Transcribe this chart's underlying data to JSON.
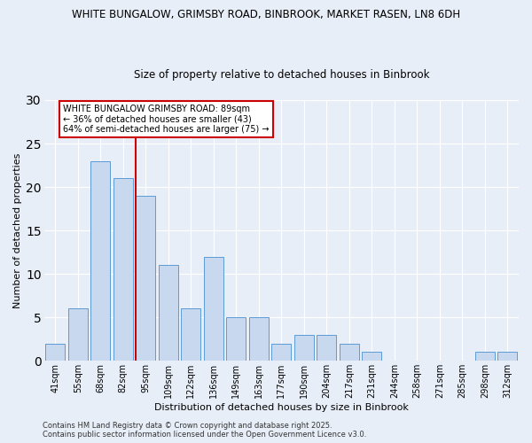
{
  "title1": "WHITE BUNGALOW, GRIMSBY ROAD, BINBROOK, MARKET RASEN, LN8 6DH",
  "title2": "Size of property relative to detached houses in Binbrook",
  "xlabel": "Distribution of detached houses by size in Binbrook",
  "ylabel": "Number of detached properties",
  "bins": [
    "41sqm",
    "55sqm",
    "68sqm",
    "82sqm",
    "95sqm",
    "109sqm",
    "122sqm",
    "136sqm",
    "149sqm",
    "163sqm",
    "177sqm",
    "190sqm",
    "204sqm",
    "217sqm",
    "231sqm",
    "244sqm",
    "258sqm",
    "271sqm",
    "285sqm",
    "298sqm",
    "312sqm"
  ],
  "values": [
    2,
    6,
    23,
    21,
    19,
    11,
    6,
    12,
    5,
    5,
    2,
    3,
    3,
    2,
    1,
    0,
    0,
    0,
    0,
    1,
    1
  ],
  "bar_color": "#c8d8ee",
  "bar_edge_color": "#5b9bd5",
  "vline_color": "#cc0000",
  "vline_pos": 3.54,
  "ylim": [
    0,
    30
  ],
  "yticks": [
    0,
    5,
    10,
    15,
    20,
    25,
    30
  ],
  "annotation_text": "WHITE BUNGALOW GRIMSBY ROAD: 89sqm\n← 36% of detached houses are smaller (43)\n64% of semi-detached houses are larger (75) →",
  "annotation_box_color": "#ffffff",
  "annotation_box_edge": "#cc0000",
  "footer_text": "Contains HM Land Registry data © Crown copyright and database right 2025.\nContains public sector information licensed under the Open Government Licence v3.0.",
  "background_color": "#e8eef7",
  "grid_color": "#ffffff",
  "title_fontsize": 8.5,
  "axis_label_fontsize": 8,
  "tick_fontsize": 7,
  "footer_fontsize": 6
}
